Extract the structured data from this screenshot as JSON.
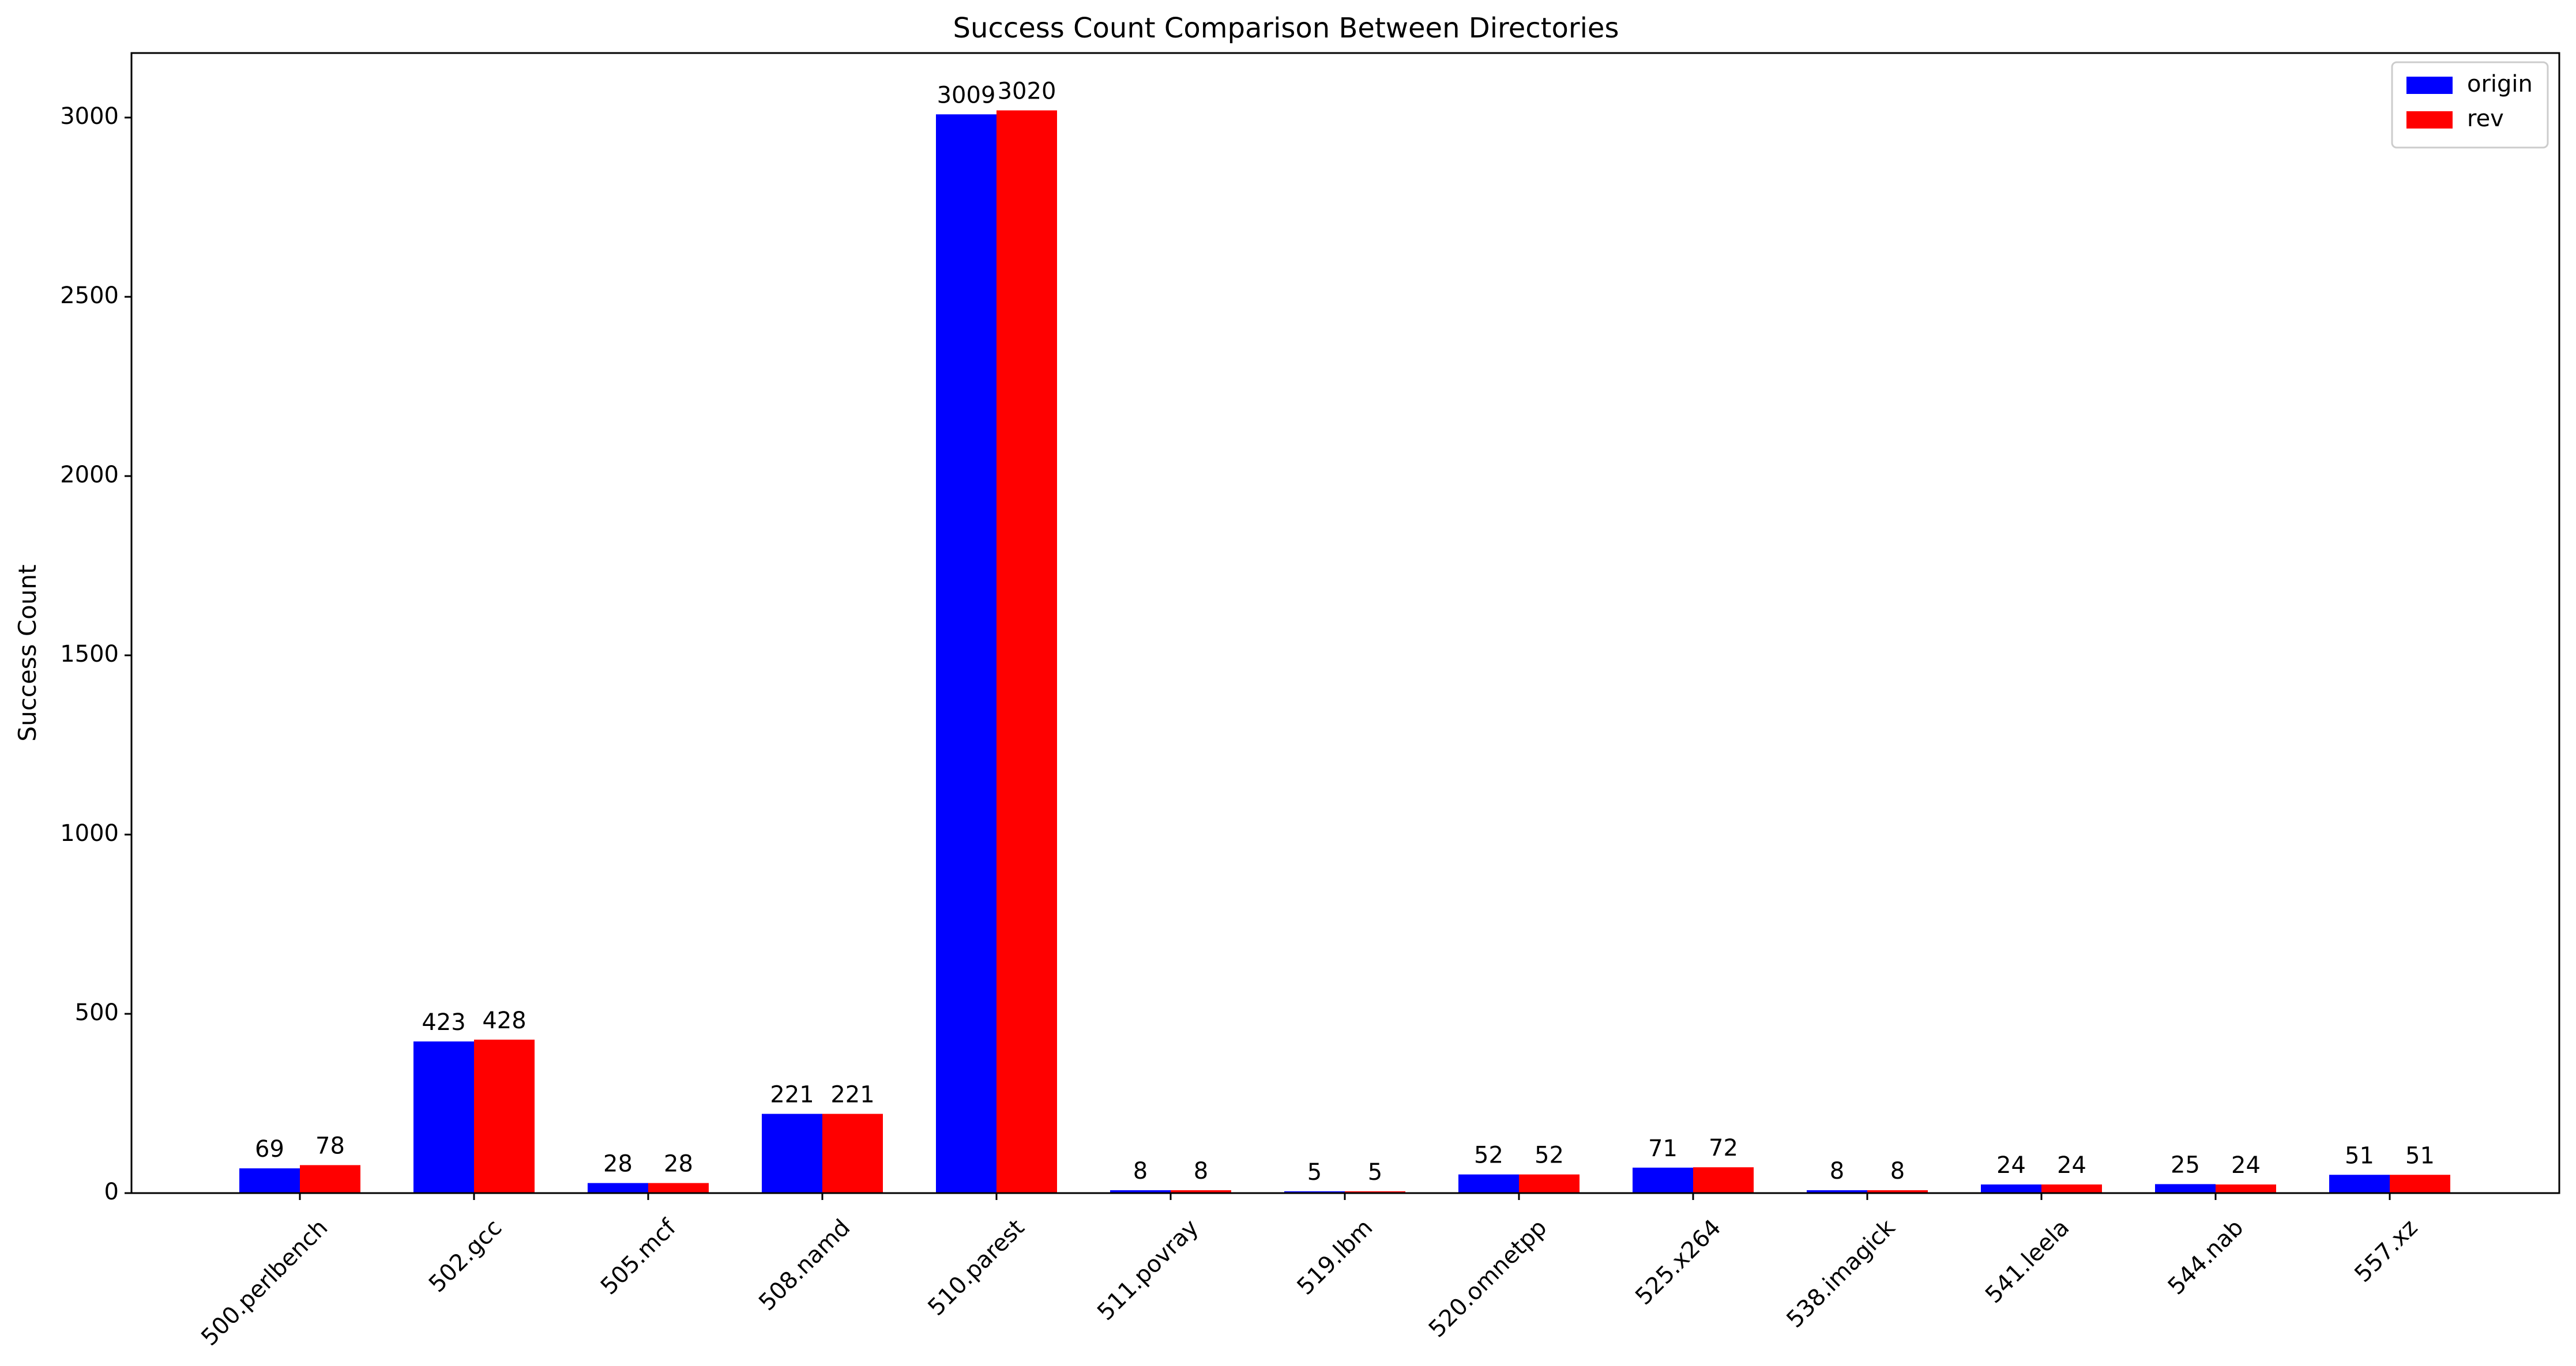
{
  "chart_data": {
    "type": "bar",
    "title": "Success Count Comparison Between Directories",
    "xlabel": "",
    "ylabel": "Success Count",
    "categories": [
      "500.perlbench",
      "502.gcc",
      "505.mcf",
      "508.namd",
      "510.parest",
      "511.povray",
      "519.lbm",
      "520.omnetpp",
      "525.x264",
      "538.imagick",
      "541.leela",
      "544.nab",
      "557.xz"
    ],
    "series": [
      {
        "name": "origin",
        "color": "#0000ff",
        "values": [
          69,
          423,
          28,
          221,
          3009,
          8,
          5,
          52,
          71,
          8,
          24,
          25,
          51
        ]
      },
      {
        "name": "rev",
        "color": "#ff0000",
        "values": [
          78,
          428,
          28,
          221,
          3020,
          8,
          5,
          52,
          72,
          8,
          24,
          24,
          51
        ]
      }
    ],
    "ylim": [
      0,
      3180
    ],
    "yticks": [
      0,
      500,
      1000,
      1500,
      2000,
      2500,
      3000
    ],
    "grid": false,
    "legend_position": "upper right"
  }
}
